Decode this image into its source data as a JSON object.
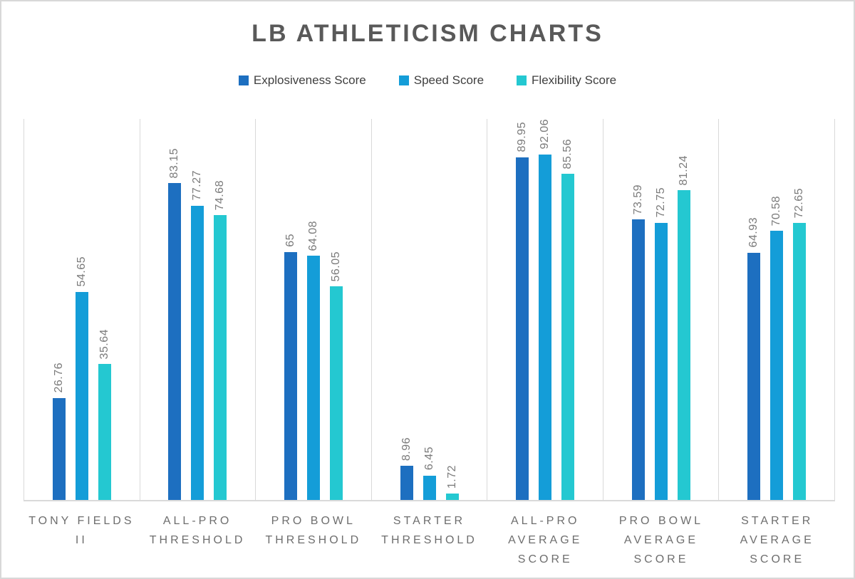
{
  "page": {
    "title": "LB ATHLETICISM CHARTS"
  },
  "chart_data": {
    "type": "bar",
    "title": "LB ATHLETICISM CHARTS",
    "categories": [
      "TONY FIELDS II",
      "ALL-PRO THRESHOLD",
      "PRO BOWL THRESHOLD",
      "STARTER THRESHOLD",
      "ALL-PRO AVERAGE SCORE",
      "PRO BOWL AVERAGE SCORE",
      "STARTER AVERAGE SCORE"
    ],
    "category_label_lines": [
      [
        "TONY FIELDS",
        "II"
      ],
      [
        "ALL-PRO",
        "THRESHOLD"
      ],
      [
        "PRO BOWL",
        "THRESHOLD"
      ],
      [
        "STARTER",
        "THRESHOLD"
      ],
      [
        "ALL-PRO",
        "AVERAGE",
        "SCORE"
      ],
      [
        "PRO BOWL",
        "AVERAGE",
        "SCORE"
      ],
      [
        "STARTER",
        "AVERAGE",
        "SCORE"
      ]
    ],
    "series": [
      {
        "name": "Explosiveness Score",
        "color": "#1d6fc0",
        "values": [
          26.76,
          83.15,
          65,
          8.96,
          89.95,
          73.59,
          64.93
        ]
      },
      {
        "name": "Speed Score",
        "color": "#149dd8",
        "values": [
          54.65,
          77.27,
          64.08,
          6.45,
          92.06,
          72.75,
          70.58
        ]
      },
      {
        "name": "Flexibility Score",
        "color": "#24c8d1",
        "values": [
          35.64,
          74.68,
          56.05,
          1.72,
          85.56,
          81.24,
          72.65
        ]
      }
    ],
    "ylim": [
      0,
      100
    ],
    "xlabel": "",
    "ylabel": "",
    "grid": "vertical category separators only, no horizontal gridlines, no y-axis labels",
    "legend_position": "top-center",
    "value_labels": "rotated 90deg, gray, above each bar"
  },
  "colors": {
    "title_text": "#595959",
    "legend_text": "#404040",
    "value_label_text": "#7b7b7b",
    "category_label_text": "#6e6e6e",
    "gridline": "#d9d9d9",
    "outer_border": "#d8d8d8",
    "background": "#ffffff"
  }
}
